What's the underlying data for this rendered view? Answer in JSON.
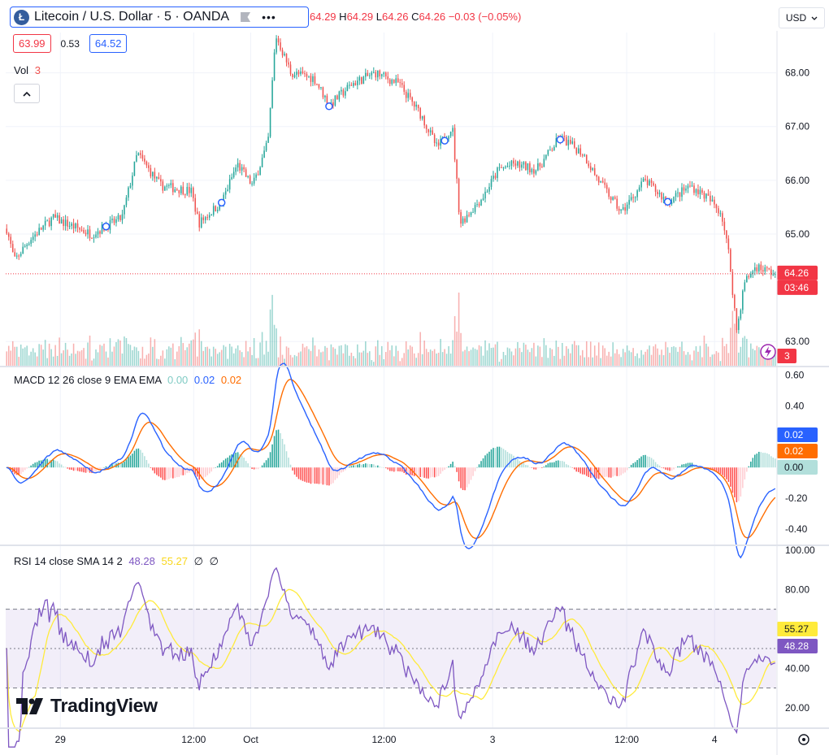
{
  "header": {
    "symbol_title": "Litecoin / U.S. Dollar · 5 · OANDA",
    "logo_letter": "Ł",
    "ohlc": {
      "o_value": "64.29",
      "h_label": "H",
      "h_value": "64.29",
      "l_label": "L",
      "l_value": "64.26",
      "c_label": "C",
      "c_value": "64.26",
      "change": "−0.03 (−0.05%)"
    },
    "bid": "63.99",
    "spread": "0.53",
    "ask": "64.52",
    "currency": "USD",
    "more_label": "•••"
  },
  "volume": {
    "label": "Vol",
    "value": "3"
  },
  "macd": {
    "label": "MACD 12 26 close 9 EMA EMA",
    "hist_value": "0.00",
    "macd_value": "0.02",
    "signal_value": "0.02"
  },
  "rsi": {
    "label": "RSI 14 close SMA 14 2",
    "rsi_value": "48.28",
    "sma_value": "55.27",
    "extra1": "∅",
    "extra2": "∅"
  },
  "brand": {
    "name": "TradingView"
  },
  "colors": {
    "up": "#26a69a",
    "down": "#ef5350",
    "macd_line": "#2962ff",
    "signal_line": "#ff6d00",
    "rsi_line": "#7e57c2",
    "rsi_sma": "#ffeb3b",
    "accent": "#2962ff"
  },
  "chart_data": [
    {
      "type": "candlestick",
      "ylim": [
        62.55,
        68.75
      ],
      "y_ticks": [
        "68.00",
        "67.00",
        "66.00",
        "65.00",
        "63.00"
      ],
      "y_tick_values": [
        68,
        67,
        66,
        65,
        63
      ],
      "x_ticks": [
        "29",
        "12:00",
        "Oct",
        "12:00",
        "3",
        "12:00",
        "4"
      ],
      "x_tick_positions": [
        0.071,
        0.244,
        0.318,
        0.491,
        0.632,
        0.806,
        0.92
      ],
      "last_price_label": "64.26",
      "countdown_label": "03:46",
      "last_price": 64.26,
      "volume_last_label": "3",
      "path_anchors": [
        [
          0.0,
          65.1
        ],
        [
          0.01,
          64.5
        ],
        [
          0.03,
          64.9
        ],
        [
          0.06,
          65.3
        ],
        [
          0.11,
          65.0
        ],
        [
          0.15,
          65.3
        ],
        [
          0.17,
          66.5
        ],
        [
          0.2,
          65.9
        ],
        [
          0.24,
          65.8
        ],
        [
          0.25,
          65.2
        ],
        [
          0.28,
          65.6
        ],
        [
          0.3,
          66.3
        ],
        [
          0.32,
          65.9
        ],
        [
          0.34,
          66.7
        ],
        [
          0.35,
          68.7
        ],
        [
          0.37,
          68.0
        ],
        [
          0.4,
          67.9
        ],
        [
          0.42,
          67.4
        ],
        [
          0.45,
          67.8
        ],
        [
          0.48,
          68.0
        ],
        [
          0.51,
          67.8
        ],
        [
          0.54,
          67.2
        ],
        [
          0.56,
          66.6
        ],
        [
          0.58,
          67.0
        ],
        [
          0.59,
          65.2
        ],
        [
          0.62,
          65.7
        ],
        [
          0.64,
          66.2
        ],
        [
          0.66,
          66.3
        ],
        [
          0.69,
          66.2
        ],
        [
          0.72,
          66.8
        ],
        [
          0.75,
          66.5
        ],
        [
          0.77,
          66.0
        ],
        [
          0.8,
          65.4
        ],
        [
          0.83,
          66.0
        ],
        [
          0.86,
          65.6
        ],
        [
          0.89,
          65.9
        ],
        [
          0.91,
          65.7
        ],
        [
          0.93,
          65.4
        ],
        [
          0.94,
          64.6
        ],
        [
          0.95,
          63.2
        ],
        [
          0.96,
          64.1
        ],
        [
          0.975,
          64.4
        ],
        [
          1.0,
          64.26
        ]
      ]
    },
    {
      "type": "line",
      "title": "MACD",
      "ylim": [
        -0.5,
        0.65
      ],
      "y_ticks": [
        "0.60",
        "0.40",
        "-0.20",
        "-0.40"
      ],
      "y_tick_values": [
        0.6,
        0.4,
        -0.2,
        -0.4
      ],
      "series": [
        {
          "name": "MACD",
          "last_value": "0.02"
        },
        {
          "name": "Signal",
          "last_value": "0.02"
        },
        {
          "name": "Histogram",
          "last_value": "0.00"
        }
      ]
    },
    {
      "type": "line",
      "title": "RSI",
      "ylim": [
        10,
        102
      ],
      "y_ticks": [
        "100.00",
        "80.00",
        "40.00",
        "20.00"
      ],
      "y_tick_values": [
        100,
        80,
        40,
        20
      ],
      "bands": [
        30,
        50,
        70
      ],
      "series": [
        {
          "name": "RSI",
          "last_value": "48.28"
        },
        {
          "name": "SMA",
          "last_value": "55.27"
        }
      ]
    }
  ]
}
